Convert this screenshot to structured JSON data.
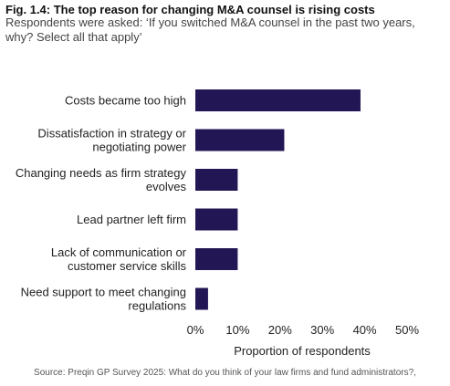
{
  "chart_data": {
    "type": "bar",
    "orientation": "horizontal",
    "title": "Fig. 1.4: The top reason for changing M&A counsel is rising costs",
    "subtitle": "Respondents were asked: ‘If you switched M&A counsel in the past two years, why? Select all that apply’",
    "categories": [
      [
        "Costs became too high"
      ],
      [
        "Dissatisfaction in strategy or",
        "negotiating power"
      ],
      [
        "Changing needs as firm strategy",
        "evolves"
      ],
      [
        "Lead partner left firm"
      ],
      [
        "Lack of communication or",
        "customer service skills"
      ],
      [
        "Need support to meet changing",
        "regulations"
      ]
    ],
    "values": [
      39,
      21,
      10,
      10,
      10,
      3
    ],
    "xlabel": "Proportion of respondents",
    "ylabel": "",
    "xlim": [
      0,
      50
    ],
    "x_ticks": [
      "0%",
      "10%",
      "20%",
      "30%",
      "40%",
      "50%"
    ],
    "grid": false,
    "legend": "none",
    "bar_color": "#231655",
    "source": "Source: Preqin GP Survey 2025: What do you think of your law firms and fund administrators?,"
  }
}
